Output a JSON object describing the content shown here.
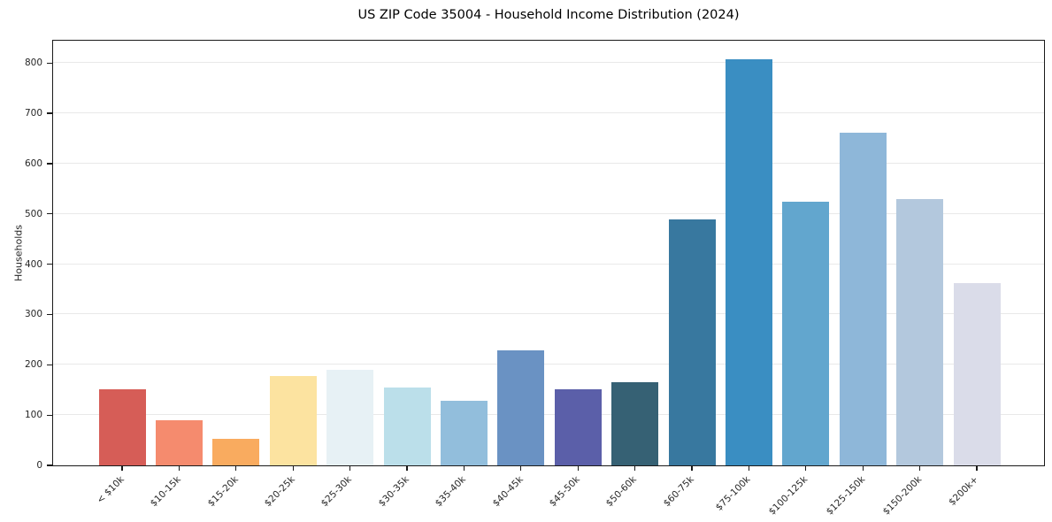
{
  "chart_data": {
    "type": "bar",
    "title": "US ZIP Code 35004 - Household Income Distribution (2024)",
    "xlabel": "",
    "ylabel": "Households",
    "categories": [
      "< $10k",
      "$10-15k",
      "$15-20k",
      "$20-25k",
      "$25-30k",
      "$30-35k",
      "$35-40k",
      "$40-45k",
      "$45-50k",
      "$50-60k",
      "$60-75k",
      "$75-100k",
      "$100-125k",
      "$125-150k",
      "$150-200k",
      "$200k+"
    ],
    "values": [
      152,
      89,
      53,
      177,
      190,
      155,
      129,
      229,
      152,
      165,
      490,
      807,
      525,
      661,
      530,
      363
    ],
    "bar_colors": [
      "#d65d57",
      "#f58b6e",
      "#f9ab5f",
      "#fce3a0",
      "#e7f1f5",
      "#bbdfea",
      "#92bedc",
      "#6a92c3",
      "#5b5fa9",
      "#366174",
      "#38789f",
      "#3a8ec2",
      "#62a6ce",
      "#8eb7d9",
      "#b3c8dd",
      "#dadce9"
    ],
    "y_ticks": [
      0,
      100,
      200,
      300,
      400,
      500,
      600,
      700,
      800
    ],
    "ylim": [
      0,
      848
    ],
    "grid": "horizontal",
    "legend": "none"
  }
}
